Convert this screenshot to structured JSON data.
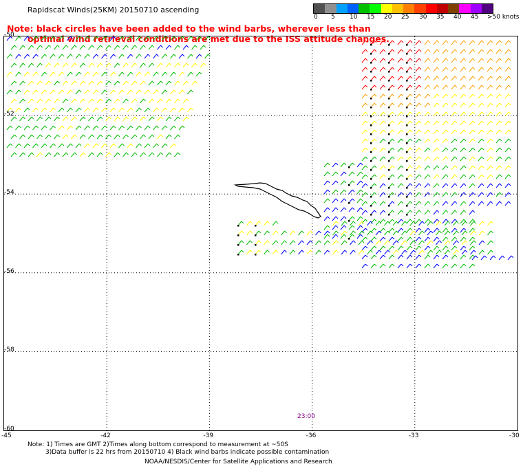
{
  "header": {
    "title": "Rapidscat Winds(25KM) 20150710 ascending",
    "note_line1": "Note: black circles have been added to the wind barbs, wherever less than",
    "note_line2": "optimal wind retrieval conditions are met due to the ISS attitude changes."
  },
  "legend": {
    "labels": [
      "0",
      "5",
      "10",
      "15",
      "20",
      "25",
      "30",
      "35",
      "40",
      "45",
      ">50 knots"
    ],
    "colors": [
      "#505050",
      "#909090",
      "#00a0ff",
      "#0060ff",
      "#00c000",
      "#00ff00",
      "#ffff00",
      "#ffc000",
      "#ff8000",
      "#ff4000",
      "#ff0000",
      "#c00000",
      "#804000",
      "#ff00ff",
      "#a000ff",
      "#500080"
    ]
  },
  "map": {
    "lat_labels": [
      "-50",
      "-52",
      "-54",
      "-56",
      "-58",
      "-60"
    ],
    "lon_labels": [
      "-45",
      "-42",
      "-39",
      "-36",
      "-33",
      "-30"
    ],
    "lat_range": [
      -60,
      -50
    ],
    "lon_range": [
      -45,
      -30
    ],
    "time_label": "23:00",
    "barb_colors": {
      "calm": "#0000ff",
      "light": "#00c000",
      "moderate": "#ffff00",
      "fresh": "#ffa000",
      "strong": "#ff0000"
    },
    "land": "South Georgia Island"
  },
  "footer": {
    "note_line1": "Note: 1) Times are GMT 2)Times along bottom correspond to measurement at ~50S",
    "note_line2": "3)Data buffer is 22 hrs from 20150710 4) Black wind barbs indicate possible contamination",
    "credit": "NOAA/NESDIS/Center for Satellite Applications and Research"
  }
}
